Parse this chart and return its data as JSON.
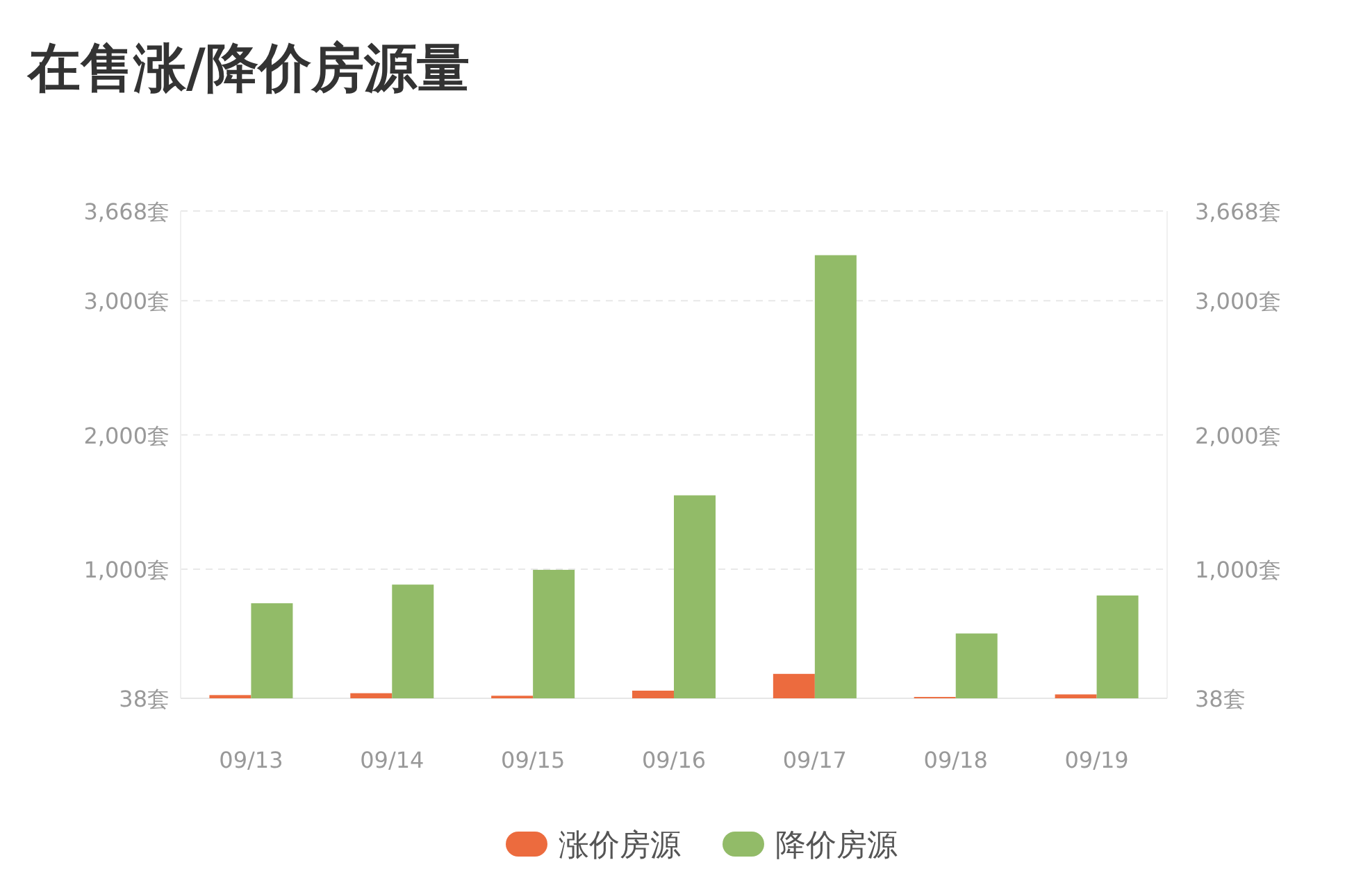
{
  "chart_data": {
    "type": "bar",
    "title": "在售涨/降价房源量",
    "categories": [
      "09/13",
      "09/14",
      "09/15",
      "09/16",
      "09/17",
      "09/18",
      "09/19"
    ],
    "series": [
      {
        "name": "涨价房源",
        "color": "#ec6b3e",
        "values": [
          62,
          76,
          57,
          95,
          220,
          48,
          67
        ]
      },
      {
        "name": "降价房源",
        "color": "#92bb68",
        "values": [
          746,
          885,
          995,
          1550,
          3339,
          521,
          804
        ]
      }
    ],
    "ylim": [
      38,
      3668
    ],
    "yticks": [
      {
        "value": 38,
        "label": "38套"
      },
      {
        "value": 1000,
        "label": "1,000套"
      },
      {
        "value": 2000,
        "label": "2,000套"
      },
      {
        "value": 3000,
        "label": "3,000套"
      },
      {
        "value": 3668,
        "label": "3,668套"
      }
    ],
    "y2lim": [
      38,
      3668
    ],
    "y2ticks": [
      {
        "value": 38,
        "label": "38套"
      },
      {
        "value": 1000,
        "label": "1,000套"
      },
      {
        "value": 2000,
        "label": "2,000套"
      },
      {
        "value": 3000,
        "label": "3,000套"
      },
      {
        "value": 3668,
        "label": "3,668套"
      }
    ],
    "grid": "y",
    "legend": "bottom"
  }
}
